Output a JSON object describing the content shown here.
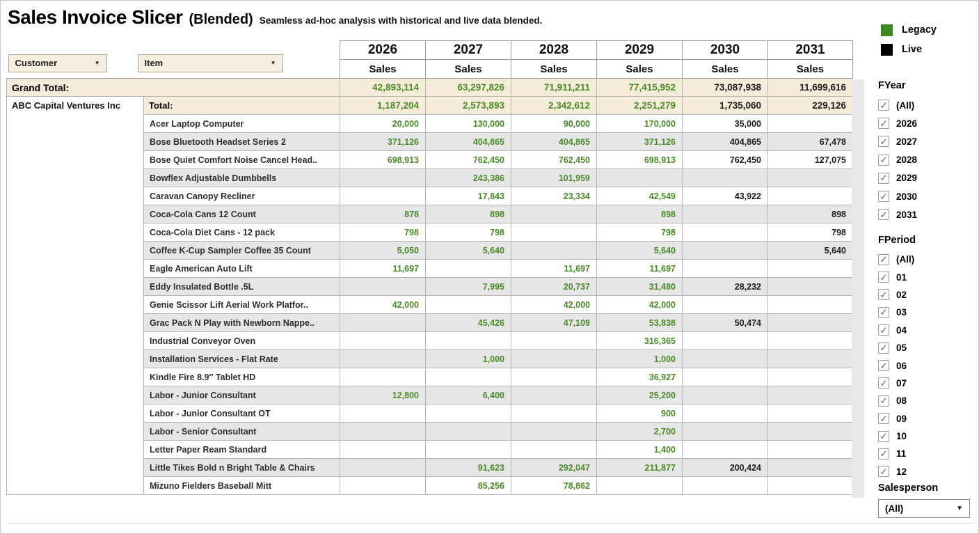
{
  "header": {
    "title": "Sales Invoice Slicer",
    "title_suffix": "(Blended)",
    "subtitle": "Seamless ad-hoc analysis with historical and live data blended."
  },
  "controls": {
    "customer_dropdown": "Customer",
    "item_dropdown": "Item"
  },
  "colors": {
    "legacy": "#3c8a1e",
    "live": "#000000",
    "legacy_text": "#4b8b28",
    "live_text": "#1c1c1c",
    "total_bg": "#f5ecd9",
    "stripe_bg": "#e6e6e6",
    "dropdown_bg": "#f6efdf"
  },
  "legend": {
    "items": [
      {
        "label": "Legacy",
        "color_key": "legacy"
      },
      {
        "label": "Live",
        "color_key": "live"
      }
    ]
  },
  "table": {
    "years": [
      "2026",
      "2027",
      "2028",
      "2029",
      "2030",
      "2031"
    ],
    "measure_label": "Sales",
    "grand_total": {
      "label": "Grand Total:",
      "cells": [
        {
          "v": "42,893,114",
          "t": "legacy"
        },
        {
          "v": "63,297,826",
          "t": "legacy"
        },
        {
          "v": "71,911,211",
          "t": "legacy"
        },
        {
          "v": "77,415,952",
          "t": "legacy"
        },
        {
          "v": "73,087,938",
          "t": "live"
        },
        {
          "v": "11,699,616",
          "t": "live"
        }
      ]
    },
    "customer": "ABC Capital Ventures Inc",
    "customer_total": {
      "label": "Total:",
      "cells": [
        {
          "v": "1,187,204",
          "t": "legacy"
        },
        {
          "v": "2,573,893",
          "t": "legacy"
        },
        {
          "v": "2,342,612",
          "t": "legacy"
        },
        {
          "v": "2,251,279",
          "t": "legacy"
        },
        {
          "v": "1,735,060",
          "t": "live"
        },
        {
          "v": "229,126",
          "t": "live"
        }
      ]
    },
    "rows": [
      {
        "item": "Acer Laptop Computer",
        "cells": [
          {
            "v": "20,000",
            "t": "legacy"
          },
          {
            "v": "130,000",
            "t": "legacy"
          },
          {
            "v": "90,000",
            "t": "legacy"
          },
          {
            "v": "170,000",
            "t": "legacy"
          },
          {
            "v": "35,000",
            "t": "live"
          },
          {
            "v": "",
            "t": ""
          }
        ]
      },
      {
        "item": "Bose Bluetooth Headset Series 2",
        "cells": [
          {
            "v": "371,126",
            "t": "legacy"
          },
          {
            "v": "404,865",
            "t": "legacy"
          },
          {
            "v": "404,865",
            "t": "legacy"
          },
          {
            "v": "371,126",
            "t": "legacy"
          },
          {
            "v": "404,865",
            "t": "live"
          },
          {
            "v": "67,478",
            "t": "live"
          }
        ]
      },
      {
        "item": "Bose Quiet Comfort Noise Cancel Head..",
        "cells": [
          {
            "v": "698,913",
            "t": "legacy"
          },
          {
            "v": "762,450",
            "t": "legacy"
          },
          {
            "v": "762,450",
            "t": "legacy"
          },
          {
            "v": "698,913",
            "t": "legacy"
          },
          {
            "v": "762,450",
            "t": "live"
          },
          {
            "v": "127,075",
            "t": "live"
          }
        ]
      },
      {
        "item": "Bowflex Adjustable Dumbbells",
        "cells": [
          {
            "v": "",
            "t": ""
          },
          {
            "v": "243,386",
            "t": "legacy"
          },
          {
            "v": "101,959",
            "t": "legacy"
          },
          {
            "v": "",
            "t": ""
          },
          {
            "v": "",
            "t": ""
          },
          {
            "v": "",
            "t": ""
          }
        ]
      },
      {
        "item": "Caravan Canopy Recliner",
        "cells": [
          {
            "v": "",
            "t": ""
          },
          {
            "v": "17,843",
            "t": "legacy"
          },
          {
            "v": "23,334",
            "t": "legacy"
          },
          {
            "v": "42,549",
            "t": "legacy"
          },
          {
            "v": "43,922",
            "t": "live"
          },
          {
            "v": "",
            "t": ""
          }
        ]
      },
      {
        "item": "Coca-Cola Cans 12 Count",
        "cells": [
          {
            "v": "878",
            "t": "legacy"
          },
          {
            "v": "898",
            "t": "legacy"
          },
          {
            "v": "",
            "t": ""
          },
          {
            "v": "898",
            "t": "legacy"
          },
          {
            "v": "",
            "t": ""
          },
          {
            "v": "898",
            "t": "live"
          }
        ]
      },
      {
        "item": "Coca-Cola Diet Cans - 12 pack",
        "cells": [
          {
            "v": "798",
            "t": "legacy"
          },
          {
            "v": "798",
            "t": "legacy"
          },
          {
            "v": "",
            "t": ""
          },
          {
            "v": "798",
            "t": "legacy"
          },
          {
            "v": "",
            "t": ""
          },
          {
            "v": "798",
            "t": "live"
          }
        ]
      },
      {
        "item": "Coffee K-Cup Sampler Coffee 35 Count",
        "cells": [
          {
            "v": "5,050",
            "t": "legacy"
          },
          {
            "v": "5,640",
            "t": "legacy"
          },
          {
            "v": "",
            "t": ""
          },
          {
            "v": "5,640",
            "t": "legacy"
          },
          {
            "v": "",
            "t": ""
          },
          {
            "v": "5,640",
            "t": "live"
          }
        ]
      },
      {
        "item": "Eagle American Auto Lift",
        "cells": [
          {
            "v": "11,697",
            "t": "legacy"
          },
          {
            "v": "",
            "t": ""
          },
          {
            "v": "11,697",
            "t": "legacy"
          },
          {
            "v": "11,697",
            "t": "legacy"
          },
          {
            "v": "",
            "t": ""
          },
          {
            "v": "",
            "t": ""
          }
        ]
      },
      {
        "item": "Eddy Insulated Bottle .5L",
        "cells": [
          {
            "v": "",
            "t": ""
          },
          {
            "v": "7,995",
            "t": "legacy"
          },
          {
            "v": "20,737",
            "t": "legacy"
          },
          {
            "v": "31,480",
            "t": "legacy"
          },
          {
            "v": "28,232",
            "t": "live"
          },
          {
            "v": "",
            "t": ""
          }
        ]
      },
      {
        "item": "Genie Scissor Lift Aerial Work Platfor..",
        "cells": [
          {
            "v": "42,000",
            "t": "legacy"
          },
          {
            "v": "",
            "t": ""
          },
          {
            "v": "42,000",
            "t": "legacy"
          },
          {
            "v": "42,000",
            "t": "legacy"
          },
          {
            "v": "",
            "t": ""
          },
          {
            "v": "",
            "t": ""
          }
        ]
      },
      {
        "item": "Grac Pack N Play with Newborn Nappe..",
        "cells": [
          {
            "v": "",
            "t": ""
          },
          {
            "v": "45,426",
            "t": "legacy"
          },
          {
            "v": "47,109",
            "t": "legacy"
          },
          {
            "v": "53,838",
            "t": "legacy"
          },
          {
            "v": "50,474",
            "t": "live"
          },
          {
            "v": "",
            "t": ""
          }
        ]
      },
      {
        "item": "Industrial Conveyor Oven",
        "cells": [
          {
            "v": "",
            "t": ""
          },
          {
            "v": "",
            "t": ""
          },
          {
            "v": "",
            "t": ""
          },
          {
            "v": "316,365",
            "t": "legacy"
          },
          {
            "v": "",
            "t": ""
          },
          {
            "v": "",
            "t": ""
          }
        ]
      },
      {
        "item": "Installation Services - Flat Rate",
        "cells": [
          {
            "v": "",
            "t": ""
          },
          {
            "v": "1,000",
            "t": "legacy"
          },
          {
            "v": "",
            "t": ""
          },
          {
            "v": "1,000",
            "t": "legacy"
          },
          {
            "v": "",
            "t": ""
          },
          {
            "v": "",
            "t": ""
          }
        ]
      },
      {
        "item": "Kindle Fire 8.9″ Tablet HD",
        "cells": [
          {
            "v": "",
            "t": ""
          },
          {
            "v": "",
            "t": ""
          },
          {
            "v": "",
            "t": ""
          },
          {
            "v": "36,927",
            "t": "legacy"
          },
          {
            "v": "",
            "t": ""
          },
          {
            "v": "",
            "t": ""
          }
        ]
      },
      {
        "item": "Labor - Junior Consultant",
        "cells": [
          {
            "v": "12,800",
            "t": "legacy"
          },
          {
            "v": "6,400",
            "t": "legacy"
          },
          {
            "v": "",
            "t": ""
          },
          {
            "v": "25,200",
            "t": "legacy"
          },
          {
            "v": "",
            "t": ""
          },
          {
            "v": "",
            "t": ""
          }
        ]
      },
      {
        "item": "Labor - Junior Consultant OT",
        "cells": [
          {
            "v": "",
            "t": ""
          },
          {
            "v": "",
            "t": ""
          },
          {
            "v": "",
            "t": ""
          },
          {
            "v": "900",
            "t": "legacy"
          },
          {
            "v": "",
            "t": ""
          },
          {
            "v": "",
            "t": ""
          }
        ]
      },
      {
        "item": "Labor - Senior Consultant",
        "cells": [
          {
            "v": "",
            "t": ""
          },
          {
            "v": "",
            "t": ""
          },
          {
            "v": "",
            "t": ""
          },
          {
            "v": "2,700",
            "t": "legacy"
          },
          {
            "v": "",
            "t": ""
          },
          {
            "v": "",
            "t": ""
          }
        ]
      },
      {
        "item": "Letter Paper Ream Standard",
        "cells": [
          {
            "v": "",
            "t": ""
          },
          {
            "v": "",
            "t": ""
          },
          {
            "v": "",
            "t": ""
          },
          {
            "v": "1,400",
            "t": "legacy"
          },
          {
            "v": "",
            "t": ""
          },
          {
            "v": "",
            "t": ""
          }
        ]
      },
      {
        "item": "Little Tikes Bold n Bright Table & Chairs",
        "cells": [
          {
            "v": "",
            "t": ""
          },
          {
            "v": "91,623",
            "t": "legacy"
          },
          {
            "v": "292,047",
            "t": "legacy"
          },
          {
            "v": "211,877",
            "t": "legacy"
          },
          {
            "v": "200,424",
            "t": "live"
          },
          {
            "v": "",
            "t": ""
          }
        ]
      },
      {
        "item": "Mizuno Fielders Baseball Mitt",
        "cells": [
          {
            "v": "",
            "t": ""
          },
          {
            "v": "85,256",
            "t": "legacy"
          },
          {
            "v": "78,862",
            "t": "legacy"
          },
          {
            "v": "",
            "t": ""
          },
          {
            "v": "",
            "t": ""
          },
          {
            "v": "",
            "t": ""
          }
        ]
      }
    ]
  },
  "filters": {
    "fyear": {
      "title": "FYear",
      "options": [
        {
          "label": "(All)",
          "checked": true
        },
        {
          "label": "2026",
          "checked": true
        },
        {
          "label": "2027",
          "checked": true
        },
        {
          "label": "2028",
          "checked": true
        },
        {
          "label": "2029",
          "checked": true
        },
        {
          "label": "2030",
          "checked": true
        },
        {
          "label": "2031",
          "checked": true
        }
      ]
    },
    "fperiod": {
      "title": "FPeriod",
      "options": [
        {
          "label": "(All)",
          "checked": true
        },
        {
          "label": "01",
          "checked": true
        },
        {
          "label": "02",
          "checked": true
        },
        {
          "label": "03",
          "checked": true
        },
        {
          "label": "04",
          "checked": true
        },
        {
          "label": "05",
          "checked": true
        },
        {
          "label": "06",
          "checked": true
        },
        {
          "label": "07",
          "checked": true
        },
        {
          "label": "08",
          "checked": true
        },
        {
          "label": "09",
          "checked": true
        },
        {
          "label": "10",
          "checked": true
        },
        {
          "label": "11",
          "checked": true
        },
        {
          "label": "12",
          "checked": true
        }
      ]
    },
    "salesperson": {
      "title": "Salesperson",
      "value": "(All)"
    }
  }
}
